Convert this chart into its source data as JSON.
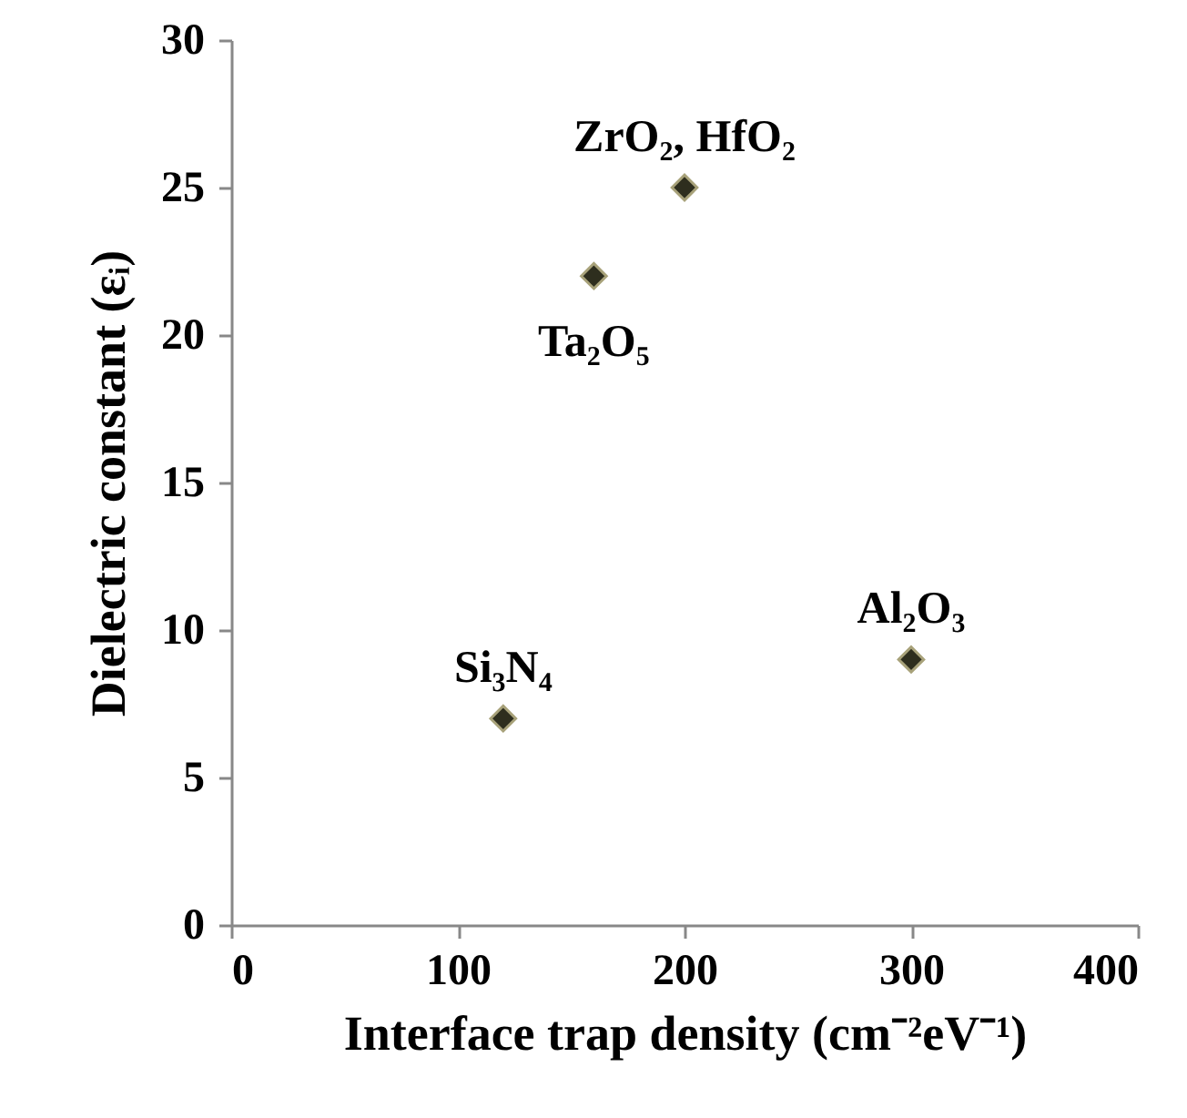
{
  "chart_data": {
    "type": "scatter",
    "xlabel": "Interface trap density (cm⁻²eV⁻¹)",
    "ylabel": "Dielectric constant (εᵢ)",
    "x": [
      120,
      160,
      200,
      300
    ],
    "series": [
      {
        "color": "#2e2e1e",
        "values": [
          7,
          22,
          25,
          9
        ]
      }
    ],
    "xlim": [
      0,
      400
    ],
    "xticks": [
      0,
      100,
      200,
      300,
      400
    ],
    "ylim": [
      0,
      30
    ],
    "yticks": [
      0,
      5,
      10,
      15,
      20,
      25,
      30
    ],
    "grid": false,
    "marker": "diamond",
    "annotations": [
      {
        "text": "Si₃N₄",
        "x": 120,
        "y": 7
      },
      {
        "text": "Ta₂O₅",
        "x": 160,
        "y": 22
      },
      {
        "text": "ZrO₂, HfO₂",
        "x": 200,
        "y": 25
      },
      {
        "text": "Al₂O₃",
        "x": 300,
        "y": 9
      }
    ]
  }
}
